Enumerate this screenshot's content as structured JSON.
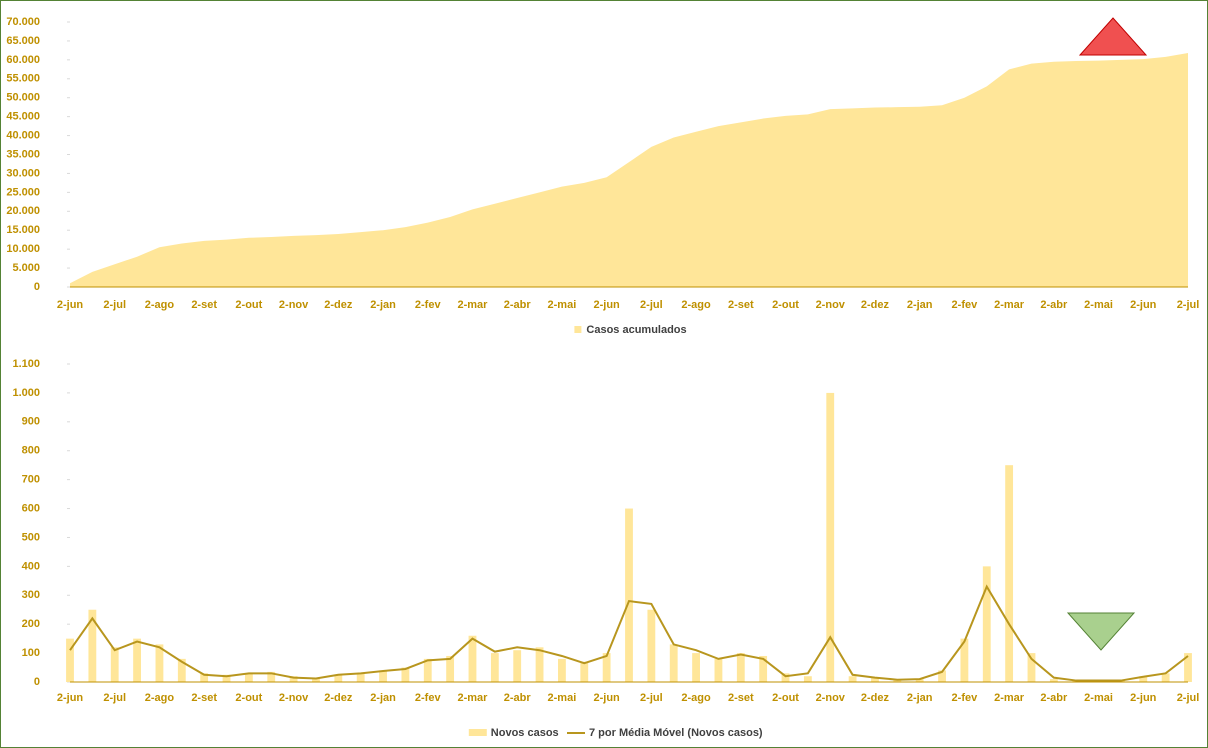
{
  "chart_data": [
    {
      "type": "area",
      "categories": [
        "2-jun",
        null,
        "2-jul",
        null,
        "2-ago",
        null,
        "2-set",
        null,
        "2-out",
        null,
        "2-nov",
        null,
        "2-dez",
        null,
        "2-jan",
        null,
        "2-fev",
        null,
        "2-mar",
        null,
        "2-abr",
        null,
        "2-mai",
        null,
        "2-jun",
        null,
        "2-jul",
        null,
        "2-ago",
        null,
        "2-set",
        null,
        "2-out",
        null,
        "2-nov",
        null,
        "2-dez",
        null,
        "2-jan",
        null,
        "2-fev",
        null,
        "2-mar",
        null,
        "2-abr",
        null,
        "2-mai",
        null,
        "2-jun",
        null,
        "2-jul"
      ],
      "series": [
        {
          "name": "Casos acumulados",
          "color": "#ffe699",
          "values": [
            1000,
            4000,
            6000,
            8000,
            10500,
            11500,
            12200,
            12500,
            13000,
            13200,
            13500,
            13700,
            14000,
            14500,
            15000,
            15800,
            17000,
            18500,
            20500,
            22000,
            23500,
            25000,
            26500,
            27500,
            29000,
            33000,
            37000,
            39500,
            41000,
            42500,
            43500,
            44500,
            45200,
            45600,
            47000,
            47200,
            47400,
            47500,
            47600,
            48000,
            50000,
            53000,
            57500,
            59000,
            59500,
            59700,
            59800,
            60000,
            60200,
            60800,
            61800
          ]
        }
      ],
      "ylim": [
        0,
        70000
      ],
      "yticks": [
        0,
        {
          "value": 5000,
          "label": "5.000"
        },
        {
          "value": 10000,
          "label": "10.000"
        },
        {
          "value": 15000,
          "label": "15.000"
        },
        {
          "value": 20000,
          "label": "20.000"
        },
        {
          "value": 25000,
          "label": "25.000"
        },
        {
          "value": 30000,
          "label": "30.000"
        },
        {
          "value": 35000,
          "label": "35.000"
        },
        {
          "value": 40000,
          "label": "40.000"
        },
        {
          "value": 45000,
          "label": "45.000"
        },
        {
          "value": 50000,
          "label": "50.000"
        },
        {
          "value": 55000,
          "label": "55.000"
        },
        {
          "value": 60000,
          "label": "60.000"
        },
        {
          "value": 65000,
          "label": "65.000"
        },
        {
          "value": 70000,
          "label": "70.000"
        }
      ]
    },
    {
      "type": "bar",
      "categories": [
        "2-jun",
        null,
        "2-jul",
        null,
        "2-ago",
        null,
        "2-set",
        null,
        "2-out",
        null,
        "2-nov",
        null,
        "2-dez",
        null,
        "2-jan",
        null,
        "2-fev",
        null,
        "2-mar",
        null,
        "2-abr",
        null,
        "2-mai",
        null,
        "2-jun",
        null,
        "2-jul",
        null,
        "2-ago",
        null,
        "2-set",
        null,
        "2-out",
        null,
        "2-nov",
        null,
        "2-dez",
        null,
        "2-jan",
        null,
        "2-fev",
        null,
        "2-mar",
        null,
        "2-abr",
        null,
        "2-mai",
        null,
        "2-jun",
        null,
        "2-jul"
      ],
      "series": [
        {
          "name": "Novos casos",
          "type": "bar",
          "color": "#ffe699",
          "values": [
            150,
            250,
            120,
            150,
            130,
            80,
            30,
            25,
            30,
            35,
            20,
            15,
            25,
            30,
            40,
            50,
            80,
            90,
            160,
            100,
            110,
            120,
            80,
            70,
            100,
            600,
            250,
            130,
            100,
            80,
            100,
            90,
            30,
            20,
            1000,
            20,
            15,
            10,
            10,
            40,
            150,
            400,
            750,
            100,
            10,
            5,
            5,
            5,
            20,
            30,
            100
          ]
        },
        {
          "name": "7 por Média Móvel (Novos casos)",
          "type": "line",
          "color": "#b8961e",
          "values": [
            110,
            220,
            110,
            140,
            120,
            70,
            25,
            20,
            30,
            30,
            15,
            12,
            25,
            30,
            38,
            45,
            75,
            80,
            150,
            105,
            120,
            110,
            90,
            65,
            90,
            280,
            270,
            130,
            110,
            80,
            95,
            80,
            20,
            30,
            155,
            25,
            15,
            8,
            10,
            35,
            140,
            330,
            200,
            80,
            15,
            5,
            5,
            5,
            18,
            30,
            90
          ]
        }
      ],
      "ylim": [
        0,
        1100
      ],
      "yticks": [
        0,
        100,
        200,
        300,
        400,
        500,
        600,
        700,
        800,
        900,
        {
          "value": 1000,
          "label": "1.000"
        },
        {
          "value": 1100,
          "label": "1.100"
        }
      ]
    }
  ]
}
